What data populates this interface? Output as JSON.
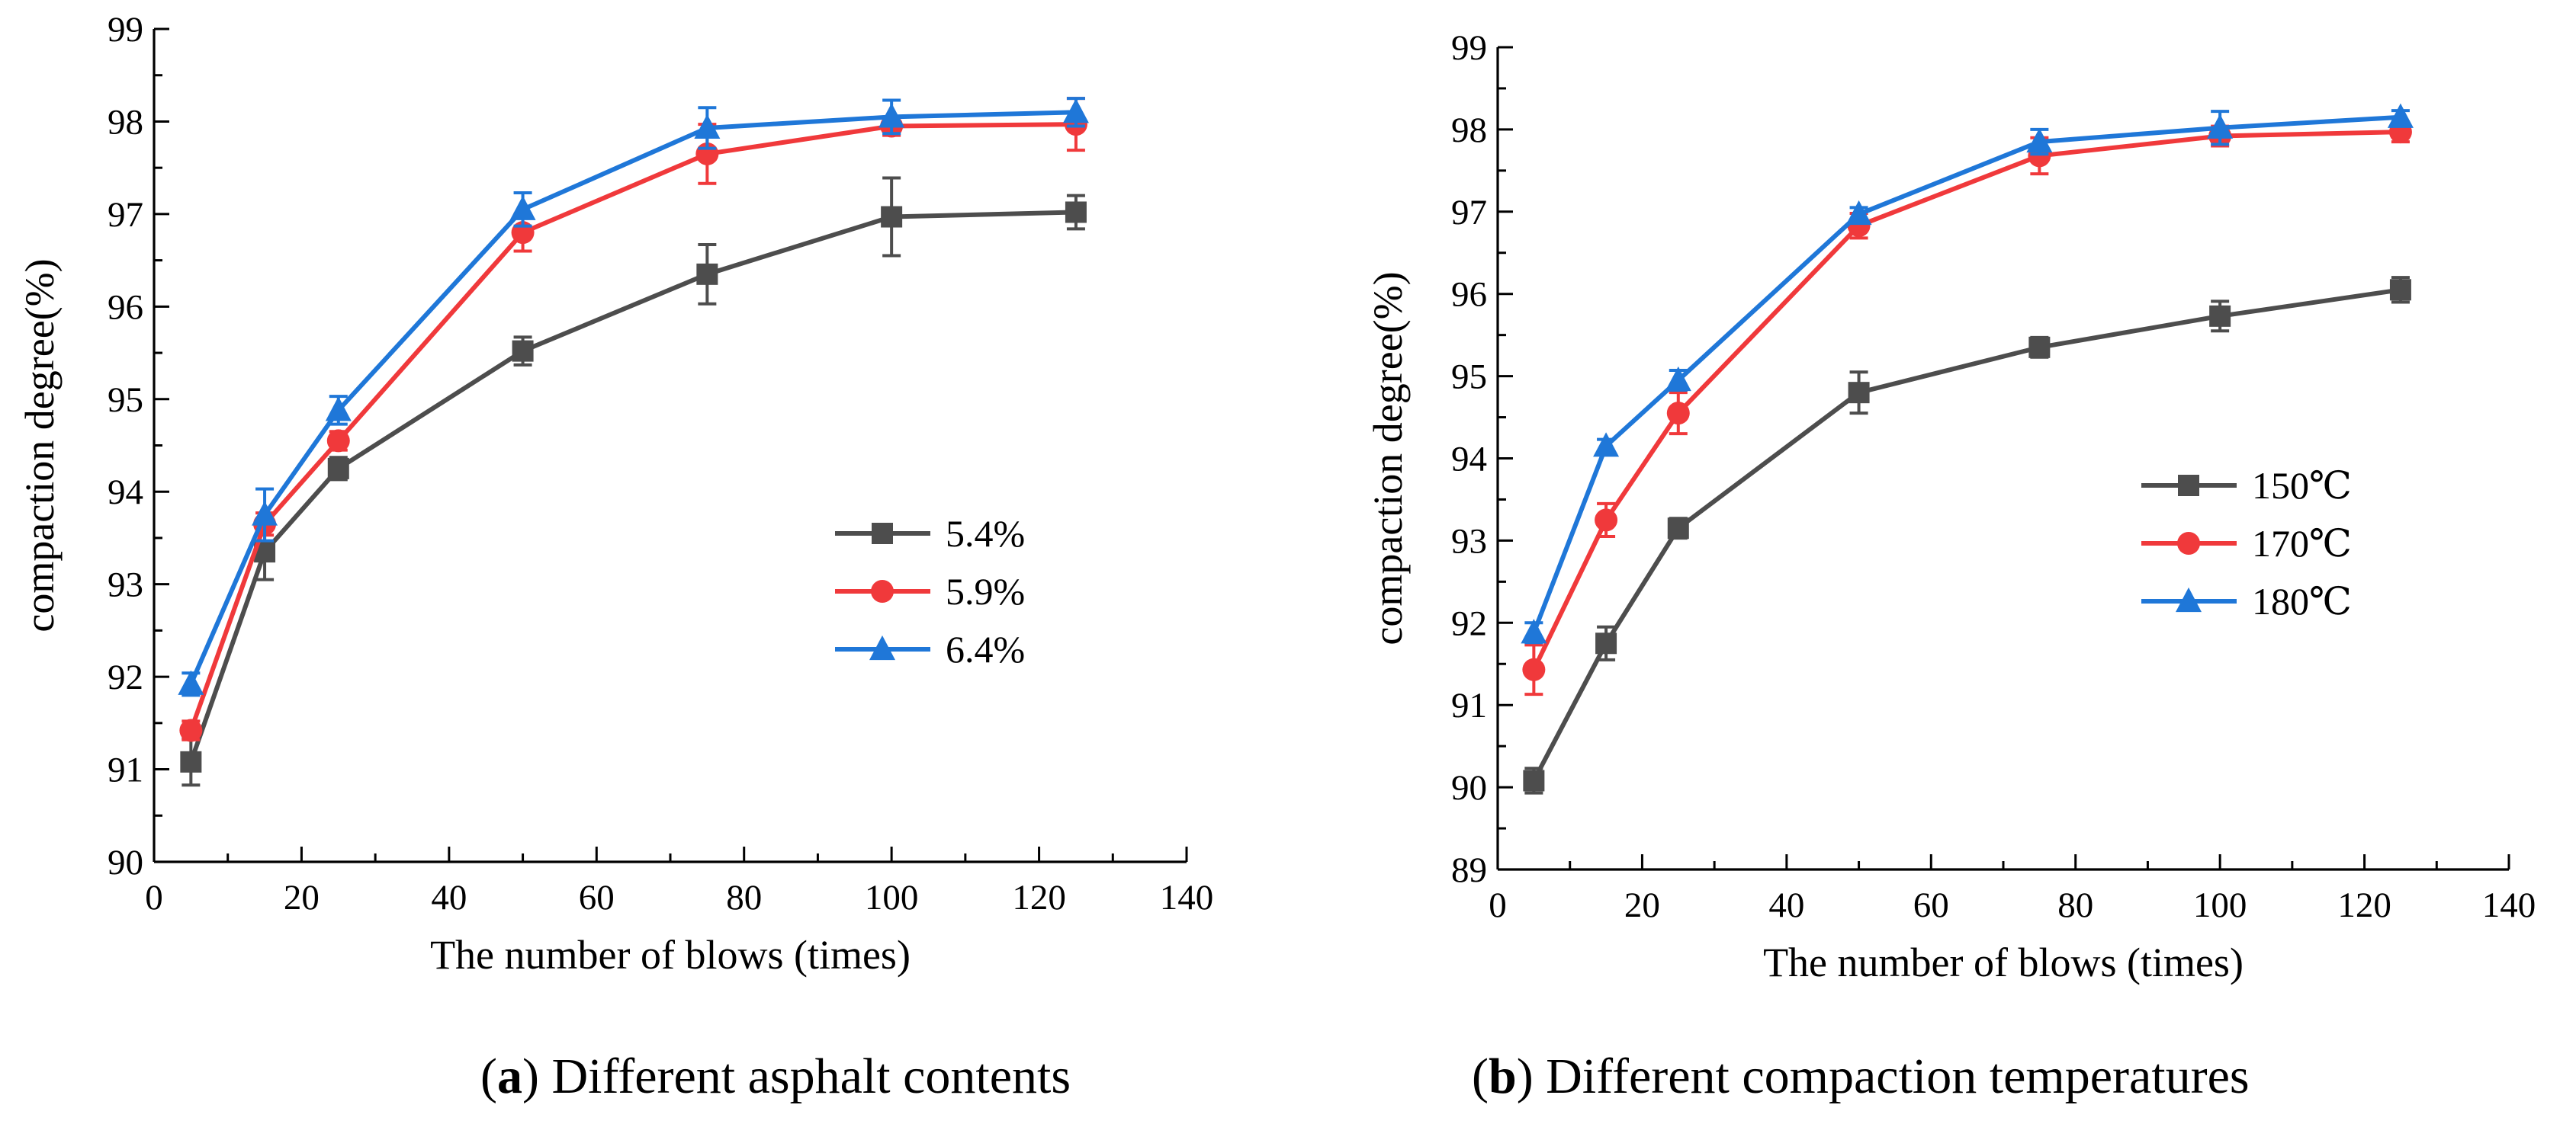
{
  "chart_data": [
    {
      "type": "line",
      "panel": "a",
      "caption_letter": "a",
      "caption_text": "Different asphalt contents",
      "xlabel": "The number of blows (times)",
      "ylabel": "compaction degree(%)",
      "xlim": [
        0,
        140
      ],
      "ylim": [
        90,
        99
      ],
      "xticks": [
        0,
        20,
        40,
        60,
        80,
        100,
        120,
        140
      ],
      "yticks": [
        90,
        91,
        92,
        93,
        94,
        95,
        96,
        97,
        98,
        99
      ],
      "grid": false,
      "legend_position": "center-right",
      "x": [
        5,
        15,
        25,
        50,
        75,
        100,
        125
      ],
      "series": [
        {
          "name": "5.4%",
          "color": "#4d4d4d",
          "marker": "square",
          "values": [
            91.08,
            93.35,
            94.25,
            95.52,
            96.35,
            96.97,
            97.02
          ],
          "errors": [
            0.25,
            0.3,
            0.12,
            0.15,
            0.32,
            0.42,
            0.18
          ]
        },
        {
          "name": "5.9%",
          "color": "#f0393b",
          "marker": "circle",
          "values": [
            91.42,
            93.65,
            94.55,
            96.8,
            97.65,
            97.95,
            97.97
          ],
          "errors": [
            0.1,
            0.12,
            0.1,
            0.2,
            0.32,
            0.1,
            0.28
          ]
        },
        {
          "name": "6.4%",
          "color": "#1f77d8",
          "marker": "triangle",
          "values": [
            91.92,
            93.75,
            94.88,
            97.05,
            97.93,
            98.05,
            98.1
          ],
          "errors": [
            0.12,
            0.28,
            0.15,
            0.18,
            0.22,
            0.18,
            0.15
          ]
        }
      ]
    },
    {
      "type": "line",
      "panel": "b",
      "caption_letter": "b",
      "caption_text": "Different compaction temperatures",
      "xlabel": "The number of blows (times)",
      "ylabel": "compaction degree(%)",
      "xlim": [
        0,
        140
      ],
      "ylim": [
        89,
        99
      ],
      "xticks": [
        0,
        20,
        40,
        60,
        80,
        100,
        120,
        140
      ],
      "yticks": [
        89,
        90,
        91,
        92,
        93,
        94,
        95,
        96,
        97,
        98,
        99
      ],
      "grid": false,
      "legend_position": "center-right",
      "x": [
        5,
        15,
        25,
        50,
        75,
        100,
        125
      ],
      "series": [
        {
          "name": "150℃",
          "color": "#4d4d4d",
          "marker": "square",
          "values": [
            90.08,
            91.75,
            93.15,
            94.8,
            95.35,
            95.73,
            96.05
          ],
          "errors": [
            0.15,
            0.2,
            0.12,
            0.25,
            0.12,
            0.18,
            0.15
          ]
        },
        {
          "name": "170℃",
          "color": "#f0393b",
          "marker": "circle",
          "values": [
            91.43,
            93.25,
            94.55,
            96.83,
            97.68,
            97.92,
            97.97
          ],
          "errors": [
            0.3,
            0.2,
            0.25,
            0.15,
            0.22,
            0.12,
            0.12
          ]
        },
        {
          "name": "180℃",
          "color": "#1f77d8",
          "marker": "triangle",
          "values": [
            91.88,
            94.15,
            94.95,
            96.97,
            97.85,
            98.02,
            98.15
          ],
          "errors": [
            0.12,
            0.08,
            0.12,
            0.08,
            0.15,
            0.2,
            0.08
          ]
        }
      ]
    }
  ]
}
